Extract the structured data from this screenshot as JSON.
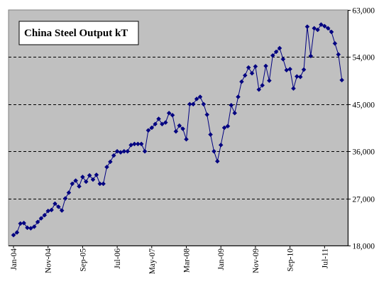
{
  "chart_data": {
    "type": "line",
    "title": "China Steel Output kT",
    "xlabel": "",
    "ylabel": "",
    "ylim": [
      18000,
      63000
    ],
    "y_ticks": [
      "18,000",
      "27,000",
      "36,000",
      "45,000",
      "54,000",
      "63,000"
    ],
    "y_tick_values": [
      18000,
      27000,
      36000,
      45000,
      54000,
      63000
    ],
    "y_axis_side": "right",
    "x_tick_labels": [
      "Jan-04",
      "Nov-04",
      "Sep-05",
      "Jul-06",
      "May-07",
      "Mar-08",
      "Jan-09",
      "Nov-09",
      "Sep-10",
      "Jul-11"
    ],
    "start_month": "Jan-04",
    "grid": "horizontal dashed",
    "plot_background": "#c0c0c0",
    "line_color": "#000080",
    "marker": "diamond",
    "series": [
      {
        "values": [
          20000,
          20500,
          22200,
          22300,
          21400,
          21300,
          21600,
          22500,
          23200,
          23800,
          24600,
          24800,
          26000,
          25400,
          24700,
          27000,
          28100,
          29800,
          30400,
          29300,
          31100,
          30200,
          31400,
          30600,
          31500,
          29800,
          29800,
          33000,
          34000,
          35200,
          36000,
          35800,
          36000,
          36000,
          37200,
          37400,
          37400,
          37400,
          36000,
          40000,
          40500,
          41200,
          42200,
          41200,
          41500,
          43300,
          42900,
          39800,
          40900,
          40300,
          38300,
          45000,
          45000,
          46000,
          46400,
          45000,
          43000,
          39200,
          36000,
          34100,
          37200,
          40500,
          40800,
          44800,
          43300,
          46400,
          49300,
          50500,
          52000,
          50900,
          52200,
          47800,
          48600,
          52300,
          49500,
          54300,
          55000,
          55700,
          53600,
          51500,
          51700,
          48000,
          50300,
          50200,
          51600,
          59800,
          54200,
          59500,
          59200,
          60200,
          59900,
          59500,
          58800,
          56600,
          54500,
          49600
        ]
      }
    ]
  }
}
